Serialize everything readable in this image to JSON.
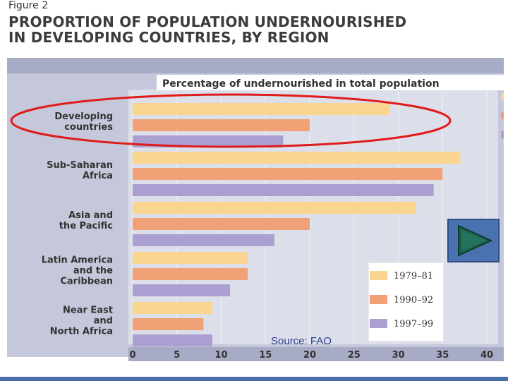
{
  "figure_label": "Figure 2",
  "title_line1": "PROPORTION OF POPULATION UNDERNOURISHED",
  "title_line2": "IN DEVELOPING COUNTRIES, BY REGION",
  "source": "Source: FAO",
  "colors": {
    "panel_bg": "#c5c8da",
    "header_band": "#a8abc6",
    "plot_bg": "#dcdee9",
    "series_1979": "#fad58f",
    "series_1990": "#f0a276",
    "series_1997": "#ab9ed0",
    "highlight_ellipse": "#e01b1b",
    "source_text": "#2b3f8c"
  },
  "chart_data": {
    "type": "bar",
    "orientation": "horizontal",
    "title": "Percentage of undernourished in total population",
    "categories": [
      [
        "Developing",
        "countries"
      ],
      [
        "Sub-Saharan",
        "Africa"
      ],
      [
        "Asia and",
        "the Pacific"
      ],
      [
        "Latin America",
        "and the",
        "Caribbean"
      ],
      [
        "Near East",
        "and",
        "North Africa"
      ]
    ],
    "series": [
      {
        "name": "1979–81",
        "values": [
          29,
          37,
          32,
          13,
          9
        ]
      },
      {
        "name": "1990–92",
        "values": [
          20,
          35,
          20,
          13,
          8
        ]
      },
      {
        "name": "1997–99",
        "values": [
          17,
          34,
          16,
          11,
          9
        ]
      }
    ],
    "xlim": [
      0,
      40
    ],
    "xticks": [
      "0",
      "5",
      "10",
      "15",
      "20",
      "25",
      "30",
      "35",
      "40"
    ],
    "grid": true,
    "legend_position": "bottom-right",
    "annotation": "red ellipse around Developing countries"
  }
}
